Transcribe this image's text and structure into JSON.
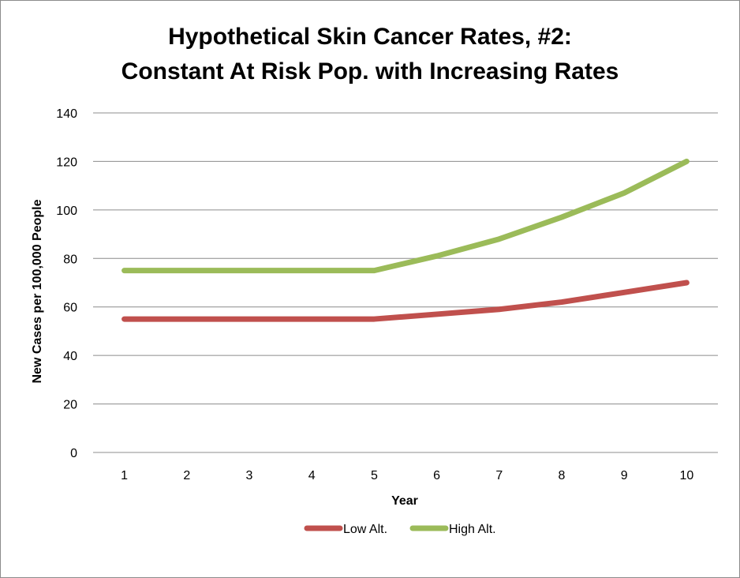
{
  "chart_data": {
    "type": "line",
    "title_line1": "Hypothetical Skin Cancer Rates, #2:",
    "title_line2": "Constant At Risk Pop. with Increasing Rates",
    "xlabel": "Year",
    "ylabel": "New  Cases per 100,000 People",
    "categories": [
      "1",
      "2",
      "3",
      "4",
      "5",
      "6",
      "7",
      "8",
      "9",
      "10"
    ],
    "ylim": [
      0,
      140
    ],
    "yticks": [
      "0",
      "20",
      "40",
      "60",
      "80",
      "100",
      "120",
      "140"
    ],
    "grid": true,
    "legend_position": "bottom",
    "series": [
      {
        "name": "Low Alt.",
        "color": "#c0504d",
        "values": [
          55,
          55,
          55,
          55,
          55,
          57,
          59,
          62,
          66,
          70
        ]
      },
      {
        "name": "High Alt.",
        "color": "#9bbb59",
        "values": [
          75,
          75,
          75,
          75,
          75,
          81,
          88,
          97,
          107,
          120
        ]
      }
    ]
  }
}
